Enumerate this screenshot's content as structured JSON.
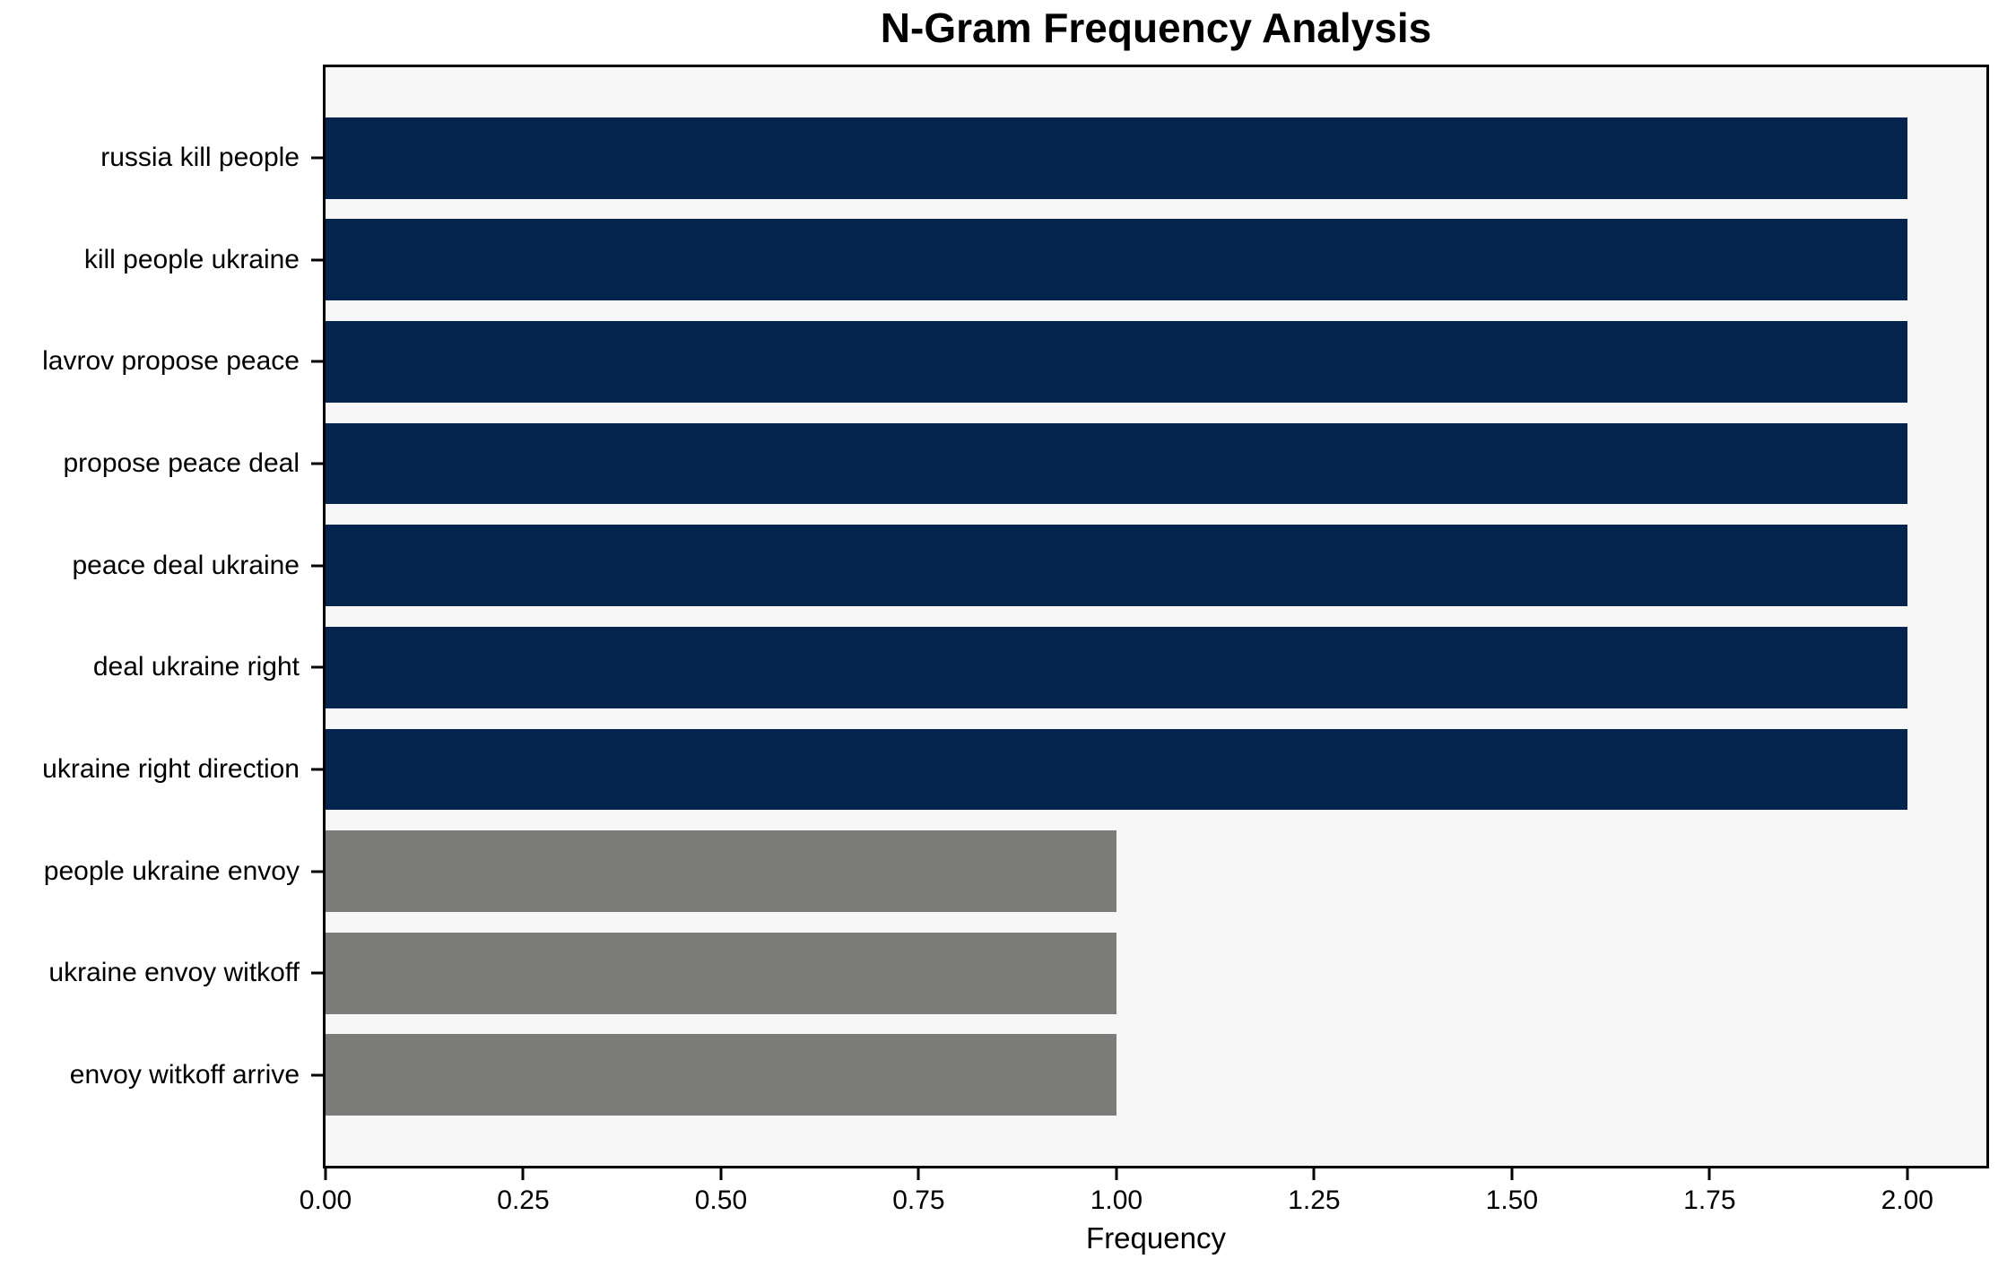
{
  "chart_data": {
    "type": "bar",
    "orientation": "horizontal",
    "title": "N-Gram Frequency Analysis",
    "xlabel": "Frequency",
    "ylabel": "",
    "categories": [
      "russia kill people",
      "kill people ukraine",
      "lavrov propose peace",
      "propose peace deal",
      "peace deal ukraine",
      "deal ukraine right",
      "ukraine right direction",
      "people ukraine envoy",
      "ukraine envoy witkoff",
      "envoy witkoff arrive"
    ],
    "values": [
      2,
      2,
      2,
      2,
      2,
      2,
      2,
      1,
      1,
      1
    ],
    "bar_colors": [
      "#06254e",
      "#06254e",
      "#06254e",
      "#06254e",
      "#06254e",
      "#06254e",
      "#06254e",
      "#7b7b79",
      "#7b7b79",
      "#7b7b79"
    ],
    "xlim": [
      0,
      2.1
    ],
    "xticks": [
      0,
      0.25,
      0.5,
      0.75,
      1.0,
      1.25,
      1.5,
      1.75,
      2.0
    ],
    "xtick_labels": [
      "0.00",
      "0.25",
      "0.50",
      "0.75",
      "1.00",
      "1.25",
      "1.50",
      "1.75",
      "2.00"
    ],
    "grid": false,
    "legend": null,
    "bar_height_fraction": 0.8,
    "plot_bg": "#f7f7f7",
    "figure_bg": "#ffffff",
    "spine_color": "#000000"
  }
}
